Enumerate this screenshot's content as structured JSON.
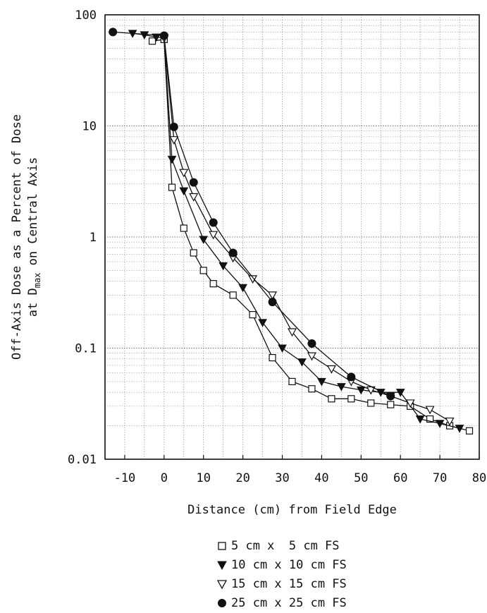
{
  "chart_data": {
    "type": "line",
    "title": "",
    "xlabel": "Distance (cm) from Field Edge",
    "ylabel_line1": "Off-Axis Dose as a Percent of Dose",
    "ylabel_line2_prefix": "at D",
    "ylabel_line2_sub": "max",
    "ylabel_line2_suffix": " on Central Axis",
    "xlim": [
      -15,
      80
    ],
    "ylim": [
      0.01,
      100
    ],
    "yscale": "log",
    "grid": true,
    "x_ticks": [
      -10,
      0,
      10,
      20,
      30,
      40,
      50,
      60,
      70,
      80
    ],
    "x_tick_labels": [
      "-10",
      "0",
      "10",
      "20",
      "30",
      "40",
      "50",
      "60",
      "70",
      "80"
    ],
    "y_ticks": [
      0.01,
      0.1,
      1,
      10,
      100
    ],
    "y_tick_labels": [
      "0.01",
      "0.1",
      "1",
      "10",
      "100"
    ],
    "legend_position": "bottom",
    "series": [
      {
        "name": "5 cm x  5 cm FS",
        "marker": "square-open",
        "x": [
          -3,
          0,
          2,
          5,
          7.5,
          10,
          12.5,
          17.5,
          22.5,
          27.5,
          32.5,
          37.5,
          42.5,
          47.5,
          52.5,
          57.5,
          62.5,
          67.5,
          72.5,
          77.5
        ],
        "y": [
          58,
          60,
          2.8,
          1.2,
          0.72,
          0.5,
          0.38,
          0.3,
          0.2,
          0.082,
          0.05,
          0.043,
          0.035,
          0.035,
          0.032,
          0.031,
          0.03,
          0.023,
          0.02,
          0.018
        ]
      },
      {
        "name": "10 cm x 10 cm FS",
        "marker": "triangle-down-filled",
        "x": [
          -8,
          -5,
          -2,
          0,
          2,
          5,
          10,
          15,
          20,
          25,
          30,
          35,
          40,
          45,
          50,
          55,
          60,
          65,
          70,
          75
        ],
        "y": [
          68,
          66,
          63,
          62,
          5,
          2.6,
          0.95,
          0.55,
          0.35,
          0.17,
          0.1,
          0.075,
          0.05,
          0.045,
          0.042,
          0.04,
          0.04,
          0.023,
          0.021,
          0.019
        ]
      },
      {
        "name": "15 cm x 15 cm FS",
        "marker": "triangle-down-open",
        "x": [
          0,
          2.5,
          5,
          7.5,
          12.5,
          17.5,
          22.5,
          27.5,
          32.5,
          37.5,
          42.5,
          47.5,
          52.5,
          57.5,
          62.5,
          67.5,
          72.5
        ],
        "y": [
          62,
          7.5,
          3.8,
          2.3,
          1.05,
          0.65,
          0.42,
          0.3,
          0.14,
          0.085,
          0.065,
          0.05,
          0.042,
          0.037,
          0.032,
          0.028,
          0.022
        ]
      },
      {
        "name": "25 cm x 25 cm FS",
        "marker": "circle-filled",
        "x": [
          -13,
          0,
          2.5,
          7.5,
          12.5,
          17.5,
          27.5,
          37.5,
          47.5,
          57.5
        ],
        "y": [
          70,
          65,
          9.8,
          3.1,
          1.35,
          0.72,
          0.26,
          0.11,
          0.055,
          0.037
        ]
      }
    ]
  }
}
